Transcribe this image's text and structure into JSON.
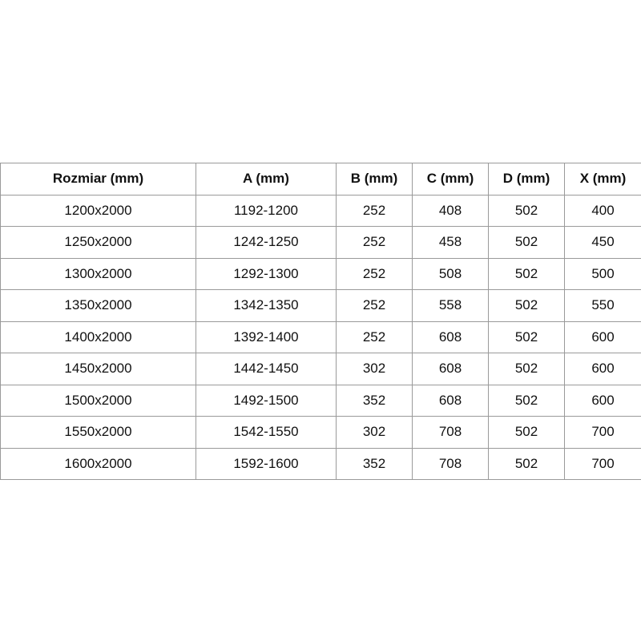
{
  "table": {
    "headers": [
      "Rozmiar (mm)",
      "A (mm)",
      "B (mm)",
      "C (mm)",
      "D (mm)",
      "X (mm)"
    ],
    "rows": [
      [
        "1200x2000",
        "1192-1200",
        "252",
        "408",
        "502",
        "400"
      ],
      [
        "1250x2000",
        "1242-1250",
        "252",
        "458",
        "502",
        "450"
      ],
      [
        "1300x2000",
        "1292-1300",
        "252",
        "508",
        "502",
        "500"
      ],
      [
        "1350x2000",
        "1342-1350",
        "252",
        "558",
        "502",
        "550"
      ],
      [
        "1400x2000",
        "1392-1400",
        "252",
        "608",
        "502",
        "600"
      ],
      [
        "1450x2000",
        "1442-1450",
        "302",
        "608",
        "502",
        "600"
      ],
      [
        "1500x2000",
        "1492-1500",
        "352",
        "608",
        "502",
        "600"
      ],
      [
        "1550x2000",
        "1542-1550",
        "302",
        "708",
        "502",
        "700"
      ],
      [
        "1600x2000",
        "1592-1600",
        "352",
        "708",
        "502",
        "700"
      ]
    ]
  }
}
